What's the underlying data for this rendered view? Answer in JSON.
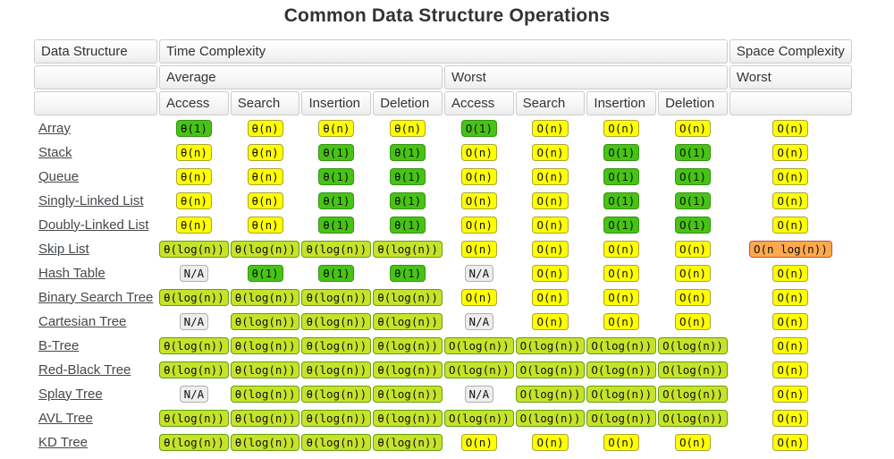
{
  "title": "Common Data Structure Operations",
  "colors": {
    "green": "#47c316",
    "green_border": "#359310",
    "yellowgreen": "#c6e32a",
    "yellowgreen_border": "#639e0c",
    "yellow": "#ffff00",
    "yellow_border": "#a6a637",
    "orange": "#ffa94e",
    "orange_border": "#bf4d43",
    "na": "#ededed",
    "na_border": "#b0b0b0",
    "link": "#45494d"
  },
  "table": {
    "headers": {
      "data_structure": "Data Structure",
      "time_complexity": "Time Complexity",
      "space_complexity": "Space Complexity",
      "average": "Average",
      "worst": "Worst",
      "space_worst": "Worst",
      "ops": [
        "Access",
        "Search",
        "Insertion",
        "Deletion",
        "Access",
        "Search",
        "Insertion",
        "Deletion"
      ]
    },
    "rows": [
      {
        "name": "Array",
        "cells": [
          {
            "text": "θ(1)",
            "level": "green"
          },
          {
            "text": "θ(n)",
            "level": "yellow"
          },
          {
            "text": "θ(n)",
            "level": "yellow"
          },
          {
            "text": "θ(n)",
            "level": "yellow"
          },
          {
            "text": "O(1)",
            "level": "green"
          },
          {
            "text": "O(n)",
            "level": "yellow"
          },
          {
            "text": "O(n)",
            "level": "yellow"
          },
          {
            "text": "O(n)",
            "level": "yellow"
          },
          {
            "text": "O(n)",
            "level": "yellow"
          }
        ]
      },
      {
        "name": "Stack",
        "cells": [
          {
            "text": "θ(n)",
            "level": "yellow"
          },
          {
            "text": "θ(n)",
            "level": "yellow"
          },
          {
            "text": "θ(1)",
            "level": "green"
          },
          {
            "text": "θ(1)",
            "level": "green"
          },
          {
            "text": "O(n)",
            "level": "yellow"
          },
          {
            "text": "O(n)",
            "level": "yellow"
          },
          {
            "text": "O(1)",
            "level": "green"
          },
          {
            "text": "O(1)",
            "level": "green"
          },
          {
            "text": "O(n)",
            "level": "yellow"
          }
        ]
      },
      {
        "name": "Queue",
        "cells": [
          {
            "text": "θ(n)",
            "level": "yellow"
          },
          {
            "text": "θ(n)",
            "level": "yellow"
          },
          {
            "text": "θ(1)",
            "level": "green"
          },
          {
            "text": "θ(1)",
            "level": "green"
          },
          {
            "text": "O(n)",
            "level": "yellow"
          },
          {
            "text": "O(n)",
            "level": "yellow"
          },
          {
            "text": "O(1)",
            "level": "green"
          },
          {
            "text": "O(1)",
            "level": "green"
          },
          {
            "text": "O(n)",
            "level": "yellow"
          }
        ]
      },
      {
        "name": "Singly-Linked List",
        "cells": [
          {
            "text": "θ(n)",
            "level": "yellow"
          },
          {
            "text": "θ(n)",
            "level": "yellow"
          },
          {
            "text": "θ(1)",
            "level": "green"
          },
          {
            "text": "θ(1)",
            "level": "green"
          },
          {
            "text": "O(n)",
            "level": "yellow"
          },
          {
            "text": "O(n)",
            "level": "yellow"
          },
          {
            "text": "O(1)",
            "level": "green"
          },
          {
            "text": "O(1)",
            "level": "green"
          },
          {
            "text": "O(n)",
            "level": "yellow"
          }
        ]
      },
      {
        "name": "Doubly-Linked List",
        "cells": [
          {
            "text": "θ(n)",
            "level": "yellow"
          },
          {
            "text": "θ(n)",
            "level": "yellow"
          },
          {
            "text": "θ(1)",
            "level": "green"
          },
          {
            "text": "θ(1)",
            "level": "green"
          },
          {
            "text": "O(n)",
            "level": "yellow"
          },
          {
            "text": "O(n)",
            "level": "yellow"
          },
          {
            "text": "O(1)",
            "level": "green"
          },
          {
            "text": "O(1)",
            "level": "green"
          },
          {
            "text": "O(n)",
            "level": "yellow"
          }
        ]
      },
      {
        "name": "Skip List",
        "cells": [
          {
            "text": "θ(log(n))",
            "level": "yellowgreen"
          },
          {
            "text": "θ(log(n))",
            "level": "yellowgreen"
          },
          {
            "text": "θ(log(n))",
            "level": "yellowgreen"
          },
          {
            "text": "θ(log(n))",
            "level": "yellowgreen"
          },
          {
            "text": "O(n)",
            "level": "yellow"
          },
          {
            "text": "O(n)",
            "level": "yellow"
          },
          {
            "text": "O(n)",
            "level": "yellow"
          },
          {
            "text": "O(n)",
            "level": "yellow"
          },
          {
            "text": "O(n log(n))",
            "level": "orange"
          }
        ]
      },
      {
        "name": "Hash Table",
        "cells": [
          {
            "text": "N/A",
            "level": "na"
          },
          {
            "text": "θ(1)",
            "level": "green"
          },
          {
            "text": "θ(1)",
            "level": "green"
          },
          {
            "text": "θ(1)",
            "level": "green"
          },
          {
            "text": "N/A",
            "level": "na"
          },
          {
            "text": "O(n)",
            "level": "yellow"
          },
          {
            "text": "O(n)",
            "level": "yellow"
          },
          {
            "text": "O(n)",
            "level": "yellow"
          },
          {
            "text": "O(n)",
            "level": "yellow"
          }
        ]
      },
      {
        "name": "Binary Search Tree",
        "cells": [
          {
            "text": "θ(log(n))",
            "level": "yellowgreen"
          },
          {
            "text": "θ(log(n))",
            "level": "yellowgreen"
          },
          {
            "text": "θ(log(n))",
            "level": "yellowgreen"
          },
          {
            "text": "θ(log(n))",
            "level": "yellowgreen"
          },
          {
            "text": "O(n)",
            "level": "yellow"
          },
          {
            "text": "O(n)",
            "level": "yellow"
          },
          {
            "text": "O(n)",
            "level": "yellow"
          },
          {
            "text": "O(n)",
            "level": "yellow"
          },
          {
            "text": "O(n)",
            "level": "yellow"
          }
        ]
      },
      {
        "name": "Cartesian Tree",
        "cells": [
          {
            "text": "N/A",
            "level": "na"
          },
          {
            "text": "θ(log(n))",
            "level": "yellowgreen"
          },
          {
            "text": "θ(log(n))",
            "level": "yellowgreen"
          },
          {
            "text": "θ(log(n))",
            "level": "yellowgreen"
          },
          {
            "text": "N/A",
            "level": "na"
          },
          {
            "text": "O(n)",
            "level": "yellow"
          },
          {
            "text": "O(n)",
            "level": "yellow"
          },
          {
            "text": "O(n)",
            "level": "yellow"
          },
          {
            "text": "O(n)",
            "level": "yellow"
          }
        ]
      },
      {
        "name": "B-Tree",
        "cells": [
          {
            "text": "θ(log(n))",
            "level": "yellowgreen"
          },
          {
            "text": "θ(log(n))",
            "level": "yellowgreen"
          },
          {
            "text": "θ(log(n))",
            "level": "yellowgreen"
          },
          {
            "text": "θ(log(n))",
            "level": "yellowgreen"
          },
          {
            "text": "O(log(n))",
            "level": "yellowgreen"
          },
          {
            "text": "O(log(n))",
            "level": "yellowgreen"
          },
          {
            "text": "O(log(n))",
            "level": "yellowgreen"
          },
          {
            "text": "O(log(n))",
            "level": "yellowgreen"
          },
          {
            "text": "O(n)",
            "level": "yellow"
          }
        ]
      },
      {
        "name": "Red-Black Tree",
        "cells": [
          {
            "text": "θ(log(n))",
            "level": "yellowgreen"
          },
          {
            "text": "θ(log(n))",
            "level": "yellowgreen"
          },
          {
            "text": "θ(log(n))",
            "level": "yellowgreen"
          },
          {
            "text": "θ(log(n))",
            "level": "yellowgreen"
          },
          {
            "text": "O(log(n))",
            "level": "yellowgreen"
          },
          {
            "text": "O(log(n))",
            "level": "yellowgreen"
          },
          {
            "text": "O(log(n))",
            "level": "yellowgreen"
          },
          {
            "text": "O(log(n))",
            "level": "yellowgreen"
          },
          {
            "text": "O(n)",
            "level": "yellow"
          }
        ]
      },
      {
        "name": "Splay Tree",
        "cells": [
          {
            "text": "N/A",
            "level": "na"
          },
          {
            "text": "θ(log(n))",
            "level": "yellowgreen"
          },
          {
            "text": "θ(log(n))",
            "level": "yellowgreen"
          },
          {
            "text": "θ(log(n))",
            "level": "yellowgreen"
          },
          {
            "text": "N/A",
            "level": "na"
          },
          {
            "text": "O(log(n))",
            "level": "yellowgreen"
          },
          {
            "text": "O(log(n))",
            "level": "yellowgreen"
          },
          {
            "text": "O(log(n))",
            "level": "yellowgreen"
          },
          {
            "text": "O(n)",
            "level": "yellow"
          }
        ]
      },
      {
        "name": "AVL Tree",
        "cells": [
          {
            "text": "θ(log(n))",
            "level": "yellowgreen"
          },
          {
            "text": "θ(log(n))",
            "level": "yellowgreen"
          },
          {
            "text": "θ(log(n))",
            "level": "yellowgreen"
          },
          {
            "text": "θ(log(n))",
            "level": "yellowgreen"
          },
          {
            "text": "O(log(n))",
            "level": "yellowgreen"
          },
          {
            "text": "O(log(n))",
            "level": "yellowgreen"
          },
          {
            "text": "O(log(n))",
            "level": "yellowgreen"
          },
          {
            "text": "O(log(n))",
            "level": "yellowgreen"
          },
          {
            "text": "O(n)",
            "level": "yellow"
          }
        ]
      },
      {
        "name": "KD Tree",
        "cells": [
          {
            "text": "θ(log(n))",
            "level": "yellowgreen"
          },
          {
            "text": "θ(log(n))",
            "level": "yellowgreen"
          },
          {
            "text": "θ(log(n))",
            "level": "yellowgreen"
          },
          {
            "text": "θ(log(n))",
            "level": "yellowgreen"
          },
          {
            "text": "O(n)",
            "level": "yellow"
          },
          {
            "text": "O(n)",
            "level": "yellow"
          },
          {
            "text": "O(n)",
            "level": "yellow"
          },
          {
            "text": "O(n)",
            "level": "yellow"
          },
          {
            "text": "O(n)",
            "level": "yellow"
          }
        ]
      }
    ]
  }
}
